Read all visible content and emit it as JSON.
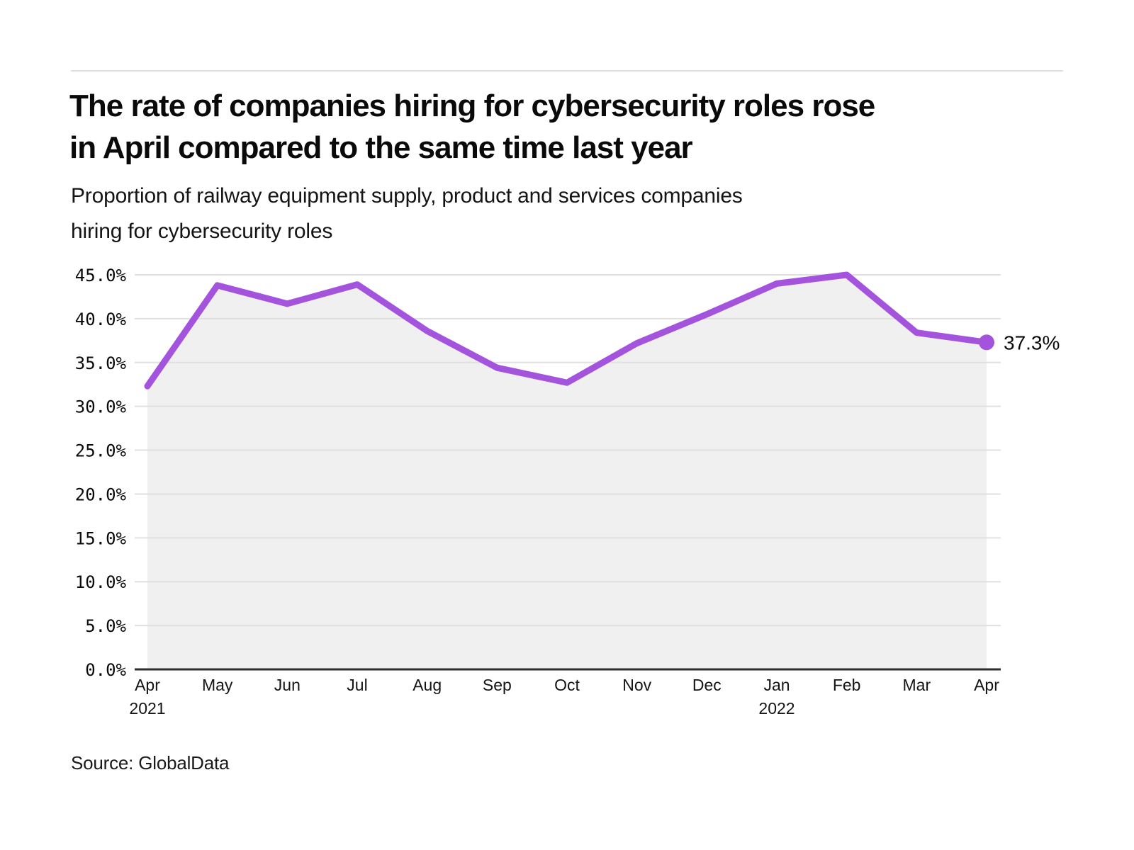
{
  "header": {
    "title_lines": [
      "The rate of companies hiring for cybersecurity roles rose",
      "in April compared to the same time last year"
    ],
    "subtitle_lines": [
      "Proportion of railway equipment supply, product and services companies",
      "hiring for cybersecurity roles"
    ]
  },
  "chart_data": {
    "type": "area",
    "title": "The rate of companies hiring for cybersecurity roles rose in April compared to the same time last year",
    "subtitle": "Proportion of railway equipment supply, product and services companies hiring for cybersecurity roles",
    "categories": [
      "Apr",
      "May",
      "Jun",
      "Jul",
      "Aug",
      "Sep",
      "Oct",
      "Nov",
      "Dec",
      "Jan",
      "Feb",
      "Mar",
      "Apr"
    ],
    "year_markers": [
      {
        "index": 0,
        "label": "2021"
      },
      {
        "index": 9,
        "label": "2022"
      }
    ],
    "series": [
      {
        "name": "Proportion of companies hiring for cybersecurity roles",
        "values": [
          32.3,
          43.8,
          41.7,
          43.9,
          38.6,
          34.4,
          32.7,
          37.2,
          40.5,
          44.0,
          45.0,
          38.4,
          37.3
        ]
      }
    ],
    "end_point_label": "37.3%",
    "ylim": [
      0,
      45
    ],
    "yticks": [
      45,
      40,
      35,
      30,
      25,
      20,
      15,
      10,
      5
    ],
    "ytick_labels": [
      "45.0%",
      "40.0%",
      "35.0%",
      "30.0%",
      "25.0%",
      "20.0%",
      "15.0%",
      "10.0%",
      "5.0%"
    ],
    "y_zero_label": "0.0%",
    "grid": true,
    "legend_position": "none",
    "colors": {
      "line": "#A454DC",
      "area": "#F0F0F0",
      "grid": "#E0E0E0",
      "axis": "#2E2E2E",
      "tick_text": "#0A0A0A"
    }
  },
  "footer": {
    "source": "Source: GlobalData"
  }
}
